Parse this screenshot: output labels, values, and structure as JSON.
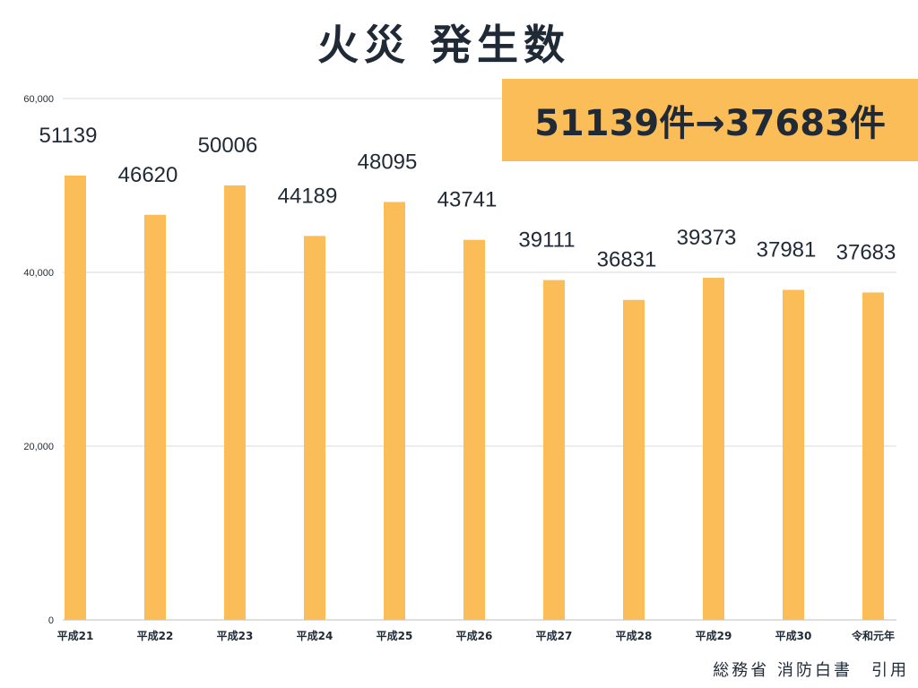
{
  "title": "火災 発生数",
  "highlight": "51139件→37683件",
  "source": "総務省 消防白書　引用",
  "colors": {
    "bar": "#fbbd58",
    "grid": "#d9d9d9",
    "text": "#1f2a36"
  },
  "chart_data": {
    "type": "bar",
    "categories": [
      "平成21",
      "平成22",
      "平成23",
      "平成24",
      "平成25",
      "平成26",
      "平成27",
      "平成28",
      "平成29",
      "平成30",
      "令和元年"
    ],
    "values": [
      51139,
      46620,
      50006,
      44189,
      48095,
      43741,
      39111,
      36831,
      39373,
      37981,
      37683
    ],
    "data_labels": [
      "51139",
      "46620",
      "50006",
      "44189",
      "48095",
      "43741",
      "39111",
      "36831",
      "39373",
      "37981",
      "37683"
    ],
    "ylim": [
      0,
      60000
    ],
    "yticks": [
      0,
      20000,
      40000,
      60000
    ],
    "ytick_labels": [
      "0",
      "20,000",
      "40,000",
      "60,000"
    ],
    "grid": true,
    "xlabel": "",
    "ylabel": ""
  }
}
